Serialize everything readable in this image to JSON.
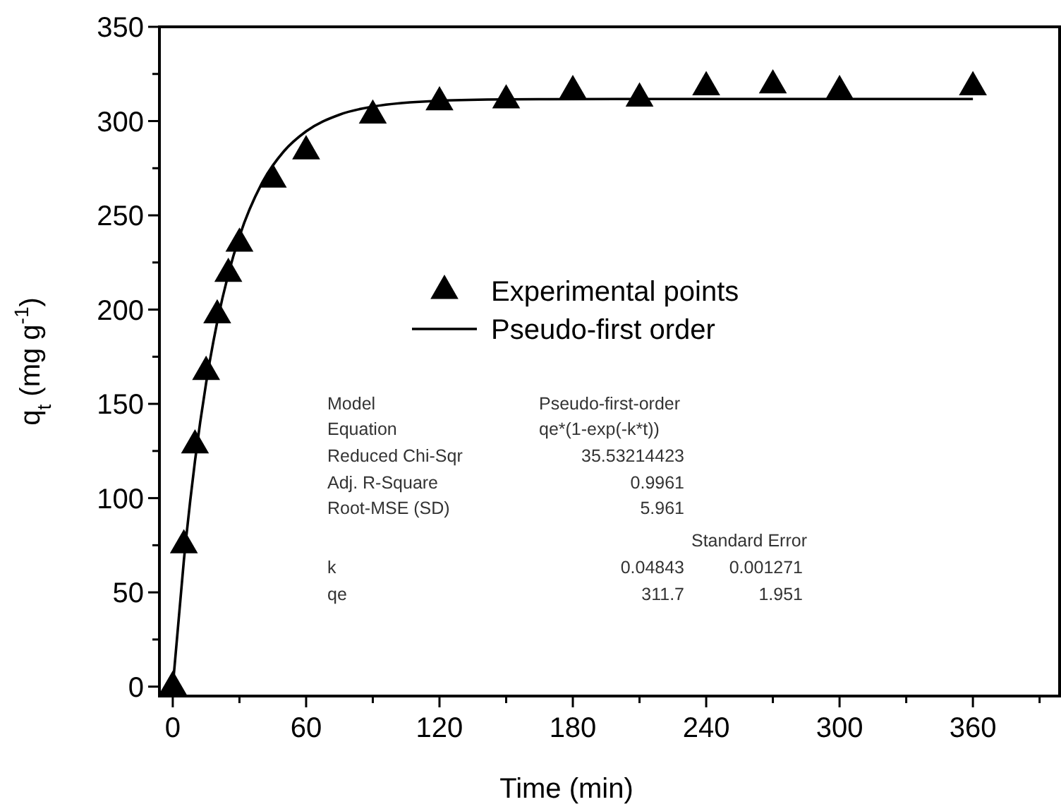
{
  "chart_data": {
    "type": "scatter",
    "xlabel": "Time (min)",
    "ylabel": "q$_{t}$ (mg g$^{-1}$)",
    "xlim": [
      -6,
      399
    ],
    "ylim": [
      -5,
      350
    ],
    "xticks": [
      0,
      {
        "value": 30,
        "label": null
      },
      60,
      {
        "value": 90,
        "label": null
      },
      120,
      {
        "value": 150,
        "label": null
      },
      180,
      {
        "value": 210,
        "label": null
      },
      240,
      {
        "value": 270,
        "label": null
      },
      300,
      {
        "value": 330,
        "label": null
      },
      360,
      {
        "value": 390,
        "label": null
      }
    ],
    "yticks": [
      0,
      {
        "value": 25,
        "label": null
      },
      50,
      {
        "value": 75,
        "label": null
      },
      100,
      {
        "value": 125,
        "label": null
      },
      150,
      {
        "value": 175,
        "label": null
      },
      200,
      {
        "value": 225,
        "label": null
      },
      250,
      {
        "value": 275,
        "label": null
      },
      300,
      {
        "value": 325,
        "label": null
      },
      350
    ],
    "grid": false,
    "legend": "top",
    "series": [
      {
        "name": "Experimental points",
        "marker": "triangle",
        "color": "#000000",
        "x": [
          0,
          5,
          10,
          15,
          20,
          25,
          30,
          45,
          60,
          90,
          120,
          150,
          180,
          210,
          240,
          270,
          300,
          360
        ],
        "values": [
          0,
          75,
          128,
          167,
          197,
          219,
          235,
          269,
          284,
          303,
          310,
          311,
          316,
          312,
          318,
          319,
          316,
          318
        ]
      },
      {
        "name": "Pseudo-first order",
        "type": "line",
        "marker": "none",
        "line_style": "solid",
        "color": "#000000",
        "x": [
          0,
          5,
          10,
          15,
          20,
          25,
          30,
          40,
          50,
          60,
          75,
          90,
          120,
          150,
          200,
          250,
          300,
          360
        ],
        "values": [
          0,
          67,
          119.7,
          161,
          193.4,
          218.8,
          238.8,
          266.8,
          284,
          294.6,
          303.4,
          307.7,
          310.8,
          311.5,
          311.7,
          311.7,
          311.7,
          311.7
        ]
      }
    ],
    "annotations": [
      "Model",
      "Pseudo-first-order",
      "Equation",
      "qe*(1-exp(-k*t))",
      "Reduced Chi-Sqr",
      "35.53214423",
      "Adj. R-Square",
      "0.9961",
      "Root-MSE (SD)",
      "5.961",
      "Standard Error",
      "k",
      "0.04843",
      "0.001271",
      "qe",
      "311.7",
      "1.951"
    ]
  }
}
